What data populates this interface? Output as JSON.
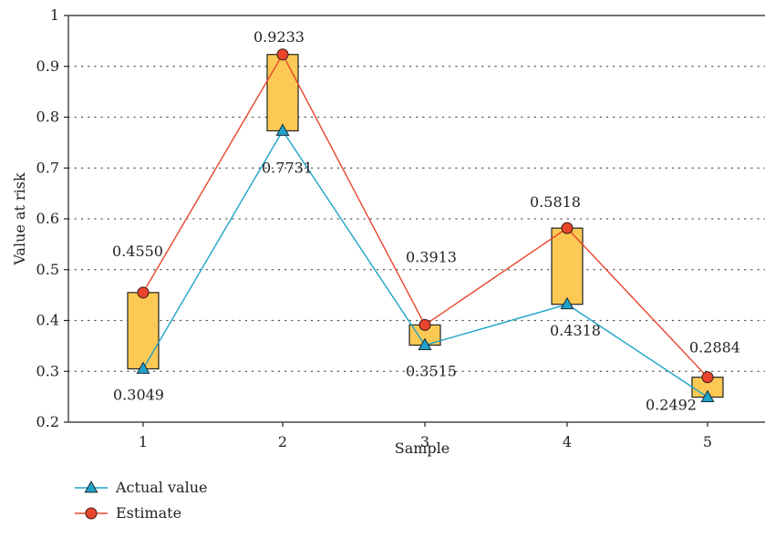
{
  "chart_data": {
    "type": "line",
    "xlabel": "Sample",
    "ylabel": "Value at risk",
    "ylim": [
      0.2,
      1.0
    ],
    "yticks": [
      0.2,
      0.3,
      0.4,
      0.5,
      0.6,
      0.7,
      0.8,
      0.9,
      1.0
    ],
    "ytick_labels": [
      "0.2",
      "0.3",
      "0.4",
      "0.5",
      "0.6",
      "0.7",
      "0.8",
      "0.9",
      "1"
    ],
    "categories": [
      "1",
      "2",
      "3",
      "4",
      "5"
    ],
    "grid": "horizontal-dotted",
    "legend_position": "bottom-left",
    "series": [
      {
        "name": "Actual value",
        "color": "#1fa3c9",
        "marker": "triangle",
        "values": [
          0.3049,
          0.7731,
          0.3515,
          0.4318,
          0.2492
        ],
        "labels": [
          "0.3049",
          "0.7731",
          "0.3515",
          "0.4318",
          "0.2492"
        ]
      },
      {
        "name": "Estimate",
        "color": "#e8452c",
        "marker": "circle",
        "values": [
          0.455,
          0.9233,
          0.3913,
          0.5818,
          0.2884
        ],
        "labels": [
          "0.4550",
          "0.9233",
          "0.3913",
          "0.5818",
          "0.2884"
        ]
      }
    ],
    "range_boxes": {
      "fill": "#fcc954",
      "stroke": "#222222",
      "description_from": "Actual value to Estimate"
    }
  }
}
